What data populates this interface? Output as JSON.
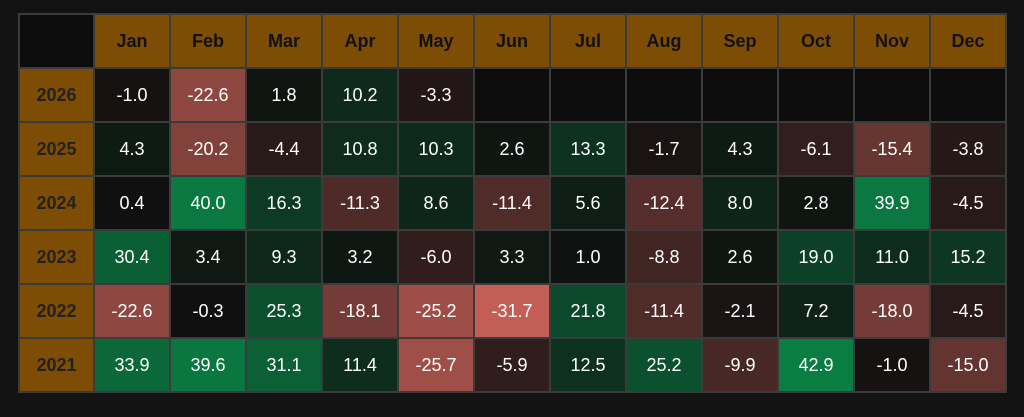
{
  "table": {
    "columns": [
      "Jan",
      "Feb",
      "Mar",
      "Apr",
      "May",
      "Jun",
      "Jul",
      "Aug",
      "Sep",
      "Oct",
      "Nov",
      "Dec"
    ],
    "rows": [
      {
        "year": "2026",
        "cells": [
          "-1.0",
          "-22.6",
          "1.8",
          "10.2",
          "-3.3",
          null,
          null,
          null,
          null,
          null,
          null,
          null
        ]
      },
      {
        "year": "2025",
        "cells": [
          "4.3",
          "-20.2",
          "-4.4",
          "10.8",
          "10.3",
          "2.6",
          "13.3",
          "-1.7",
          "4.3",
          "-6.1",
          "-15.4",
          "-3.8"
        ]
      },
      {
        "year": "2024",
        "cells": [
          "0.4",
          "40.0",
          "16.3",
          "-11.3",
          "8.6",
          "-11.4",
          "5.6",
          "-12.4",
          "8.0",
          "2.8",
          "39.9",
          "-4.5"
        ]
      },
      {
        "year": "2023",
        "cells": [
          "30.4",
          "3.4",
          "9.3",
          "3.2",
          "-6.0",
          "3.3",
          "1.0",
          "-8.8",
          "2.6",
          "19.0",
          "11.0",
          "15.2"
        ]
      },
      {
        "year": "2022",
        "cells": [
          "-22.6",
          "-0.3",
          "25.3",
          "-18.1",
          "-25.2",
          "-31.7",
          "21.8",
          "-11.4",
          "-2.1",
          "7.2",
          "-18.0",
          "-4.5"
        ]
      },
      {
        "year": "2021",
        "cells": [
          "33.9",
          "39.6",
          "31.1",
          "11.4",
          "-25.7",
          "-5.9",
          "12.5",
          "25.2",
          "-9.9",
          "42.9",
          "-1.0",
          "-15.0"
        ]
      }
    ]
  }
}
